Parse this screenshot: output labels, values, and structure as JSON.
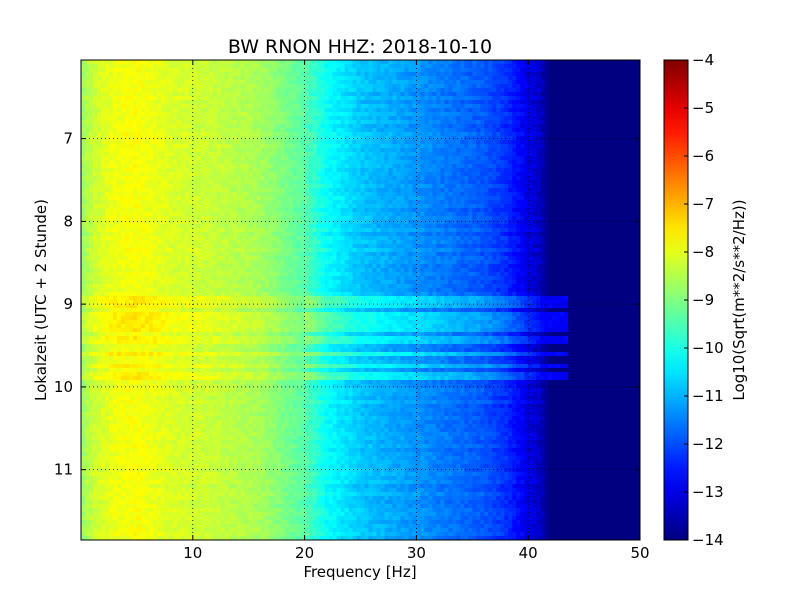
{
  "chart_data": {
    "type": "heatmap",
    "title": "BW RNON HHZ: 2018-10-10",
    "xlabel": "Frequency [Hz]",
    "ylabel": "Lokalzeit (UTC + 2 Stunde)",
    "xlim": [
      0,
      50
    ],
    "ylim": [
      6.05,
      11.85
    ],
    "y_inverted": true,
    "x_ticks": [
      10,
      20,
      30,
      40,
      50
    ],
    "y_ticks": [
      7,
      8,
      9,
      10,
      11
    ],
    "grid": true,
    "colormap": "jet",
    "colorbar": {
      "label": "Log10(Sqrt(m**2/s**2/Hz))",
      "range": [
        -14,
        -4
      ],
      "ticks": [
        -4,
        -5,
        -6,
        -7,
        -8,
        -9,
        -10,
        -11,
        -12,
        -13,
        -14
      ]
    },
    "spectrum_profile": {
      "frequency_hz": [
        0,
        1,
        3,
        5,
        8,
        12,
        16,
        20,
        22,
        25,
        28,
        30,
        33,
        36,
        38,
        40,
        41,
        42,
        45,
        50
      ],
      "log10_amplitude": [
        -8.8,
        -8.3,
        -7.9,
        -7.8,
        -8.1,
        -8.3,
        -8.6,
        -9.4,
        -10.2,
        -10.8,
        -11.1,
        -11.3,
        -11.6,
        -11.9,
        -12.3,
        -13.0,
        -13.3,
        -14.0,
        -14.0,
        -14.0
      ]
    },
    "elevated_bands_hours": [
      8.95,
      9.02,
      9.12,
      9.2,
      9.28,
      9.45,
      9.6,
      9.75,
      9.85
    ]
  }
}
